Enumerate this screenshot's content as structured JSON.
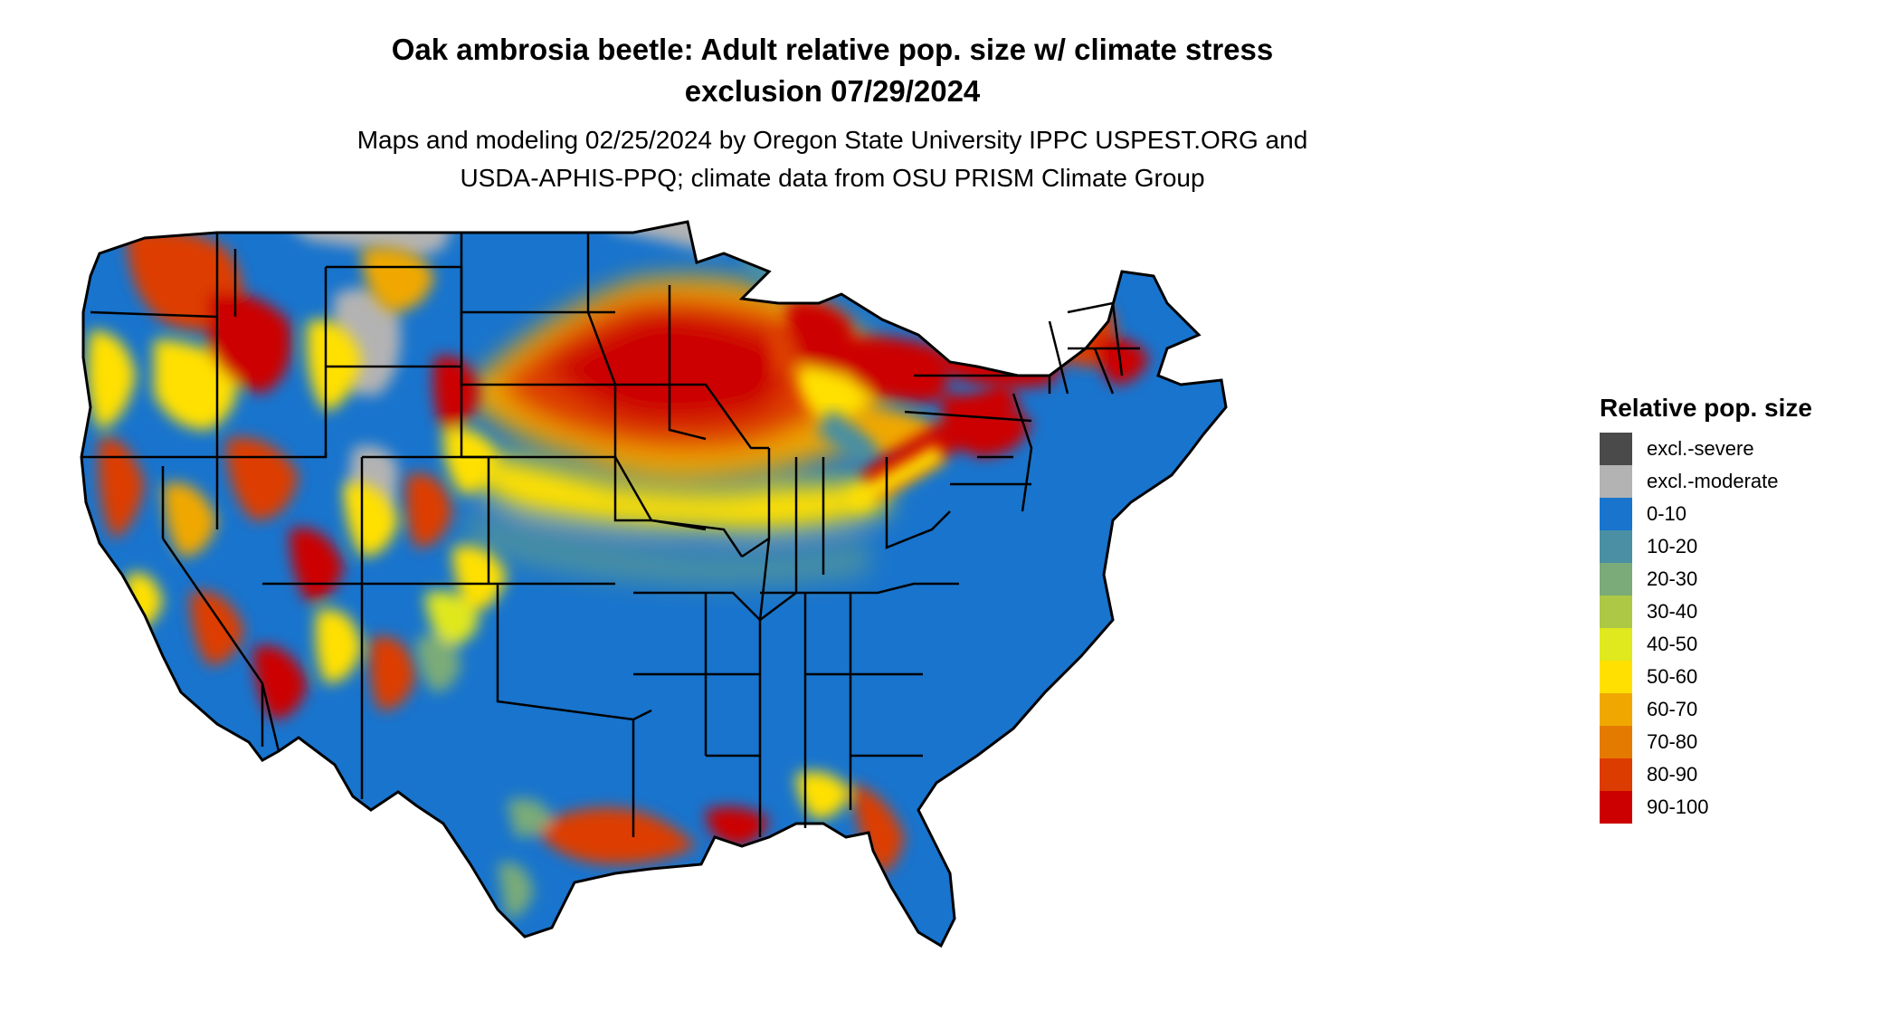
{
  "title": {
    "line1": "Oak ambrosia beetle: Adult relative pop. size w/ climate stress",
    "line2": "exclusion 07/29/2024"
  },
  "subtitle": {
    "line1": "Maps and modeling 02/25/2024 by Oregon State University IPPC USPEST.ORG and",
    "line2": "USDA-APHIS-PPQ; climate data from OSU PRISM Climate Group"
  },
  "legend": {
    "title": "Relative pop. size",
    "items": [
      {
        "label": "excl.-severe",
        "color": "#4a4a4a"
      },
      {
        "label": "excl.-moderate",
        "color": "#b3b3b3"
      },
      {
        "label": "0-10",
        "color": "#1874cd"
      },
      {
        "label": "10-20",
        "color": "#4a8fa3"
      },
      {
        "label": "20-30",
        "color": "#7aab78"
      },
      {
        "label": "30-40",
        "color": "#acc845"
      },
      {
        "label": "40-50",
        "color": "#e0e81e"
      },
      {
        "label": "50-60",
        "color": "#ffe000"
      },
      {
        "label": "60-70",
        "color": "#f0a800"
      },
      {
        "label": "70-80",
        "color": "#e57a00"
      },
      {
        "label": "80-90",
        "color": "#dd3c00"
      },
      {
        "label": "90-100",
        "color": "#cc0000"
      }
    ]
  }
}
